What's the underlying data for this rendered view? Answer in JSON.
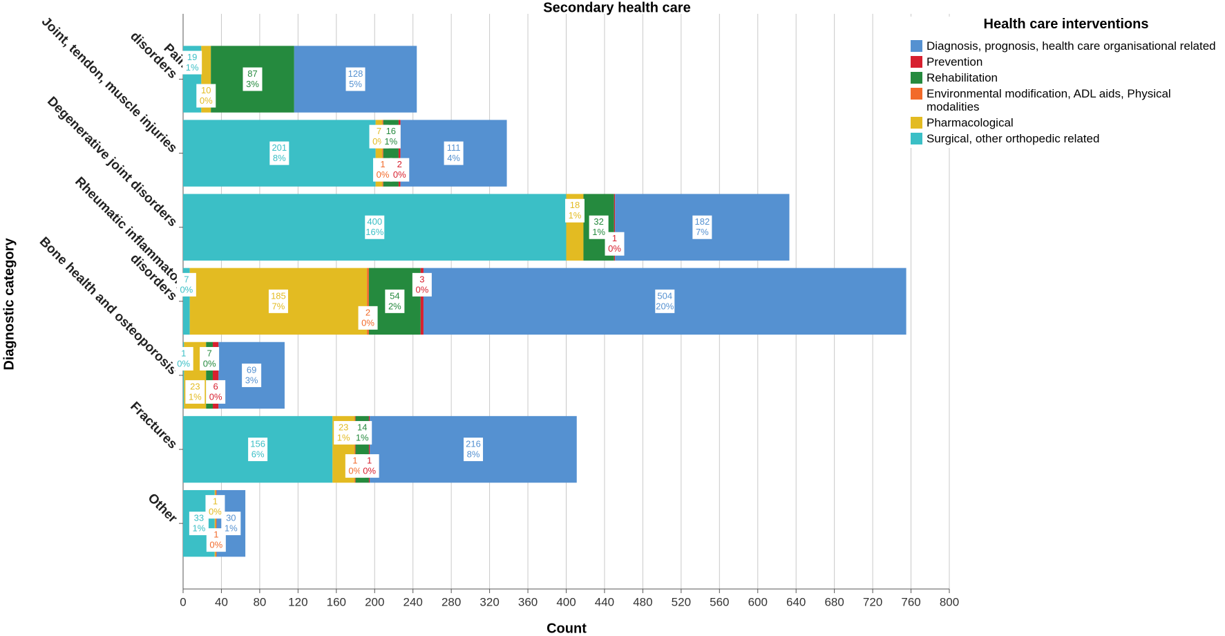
{
  "chart_data": {
    "type": "stacked-barh",
    "title": "Secondary health care",
    "x_label": "Count",
    "y_label": "Diagnostic category",
    "legend_title": "Health care interventions",
    "legend_position": "right",
    "grid": true,
    "categories": [
      "Pain\ndisorders",
      "Joint, tendon, muscle injuries",
      "Degenerative joint disorders",
      "Rheumatic inflammatory\ndisorders",
      "Bone health and osteoporosis",
      "Fractures",
      "Other"
    ],
    "xlim": [
      0,
      800
    ],
    "xticks": [
      0,
      40,
      80,
      120,
      160,
      200,
      240,
      280,
      320,
      360,
      400,
      440,
      480,
      520,
      560,
      600,
      640,
      680,
      720,
      760,
      800
    ],
    "series": [
      {
        "name": "Surgical, other orthopedic related",
        "color": "#3bbfc6",
        "values": [
          19,
          201,
          400,
          7,
          1,
          156,
          33
        ],
        "percent_labels": [
          "1%",
          "8%",
          "16%",
          "0%",
          "0%",
          "6%",
          "1%"
        ]
      },
      {
        "name": "Pharmacological",
        "color": "#e3bb22",
        "values": [
          10,
          7,
          18,
          185,
          23,
          23,
          1
        ],
        "percent_labels": [
          "0%",
          "0%",
          "1%",
          "7%",
          "1%",
          "1%",
          "0%"
        ]
      },
      {
        "name": "Environmental modification, ADL aids, Physical modalities",
        "color": "#f26a2a",
        "values": [
          null,
          1,
          null,
          2,
          null,
          1,
          1
        ],
        "percent_labels": [
          null,
          "0%",
          null,
          "0%",
          null,
          "0%",
          "0%"
        ]
      },
      {
        "name": "Rehabilitation",
        "color": "#258a3e",
        "values": [
          87,
          16,
          32,
          54,
          7,
          14,
          null
        ],
        "percent_labels": [
          "3%",
          "1%",
          "1%",
          "2%",
          "0%",
          "1%",
          null
        ]
      },
      {
        "name": "Prevention",
        "color": "#d7202f",
        "values": [
          null,
          2,
          1,
          3,
          6,
          1,
          null
        ],
        "percent_labels": [
          null,
          "0%",
          "0%",
          "0%",
          "0%",
          "0%",
          null
        ]
      },
      {
        "name": "Diagnosis, prognosis, health care organisational related",
        "color": "#5591d1",
        "values": [
          128,
          111,
          182,
          504,
          69,
          216,
          30
        ],
        "percent_labels": [
          "5%",
          "4%",
          "7%",
          "20%",
          "3%",
          "8%",
          "1%"
        ]
      }
    ]
  }
}
